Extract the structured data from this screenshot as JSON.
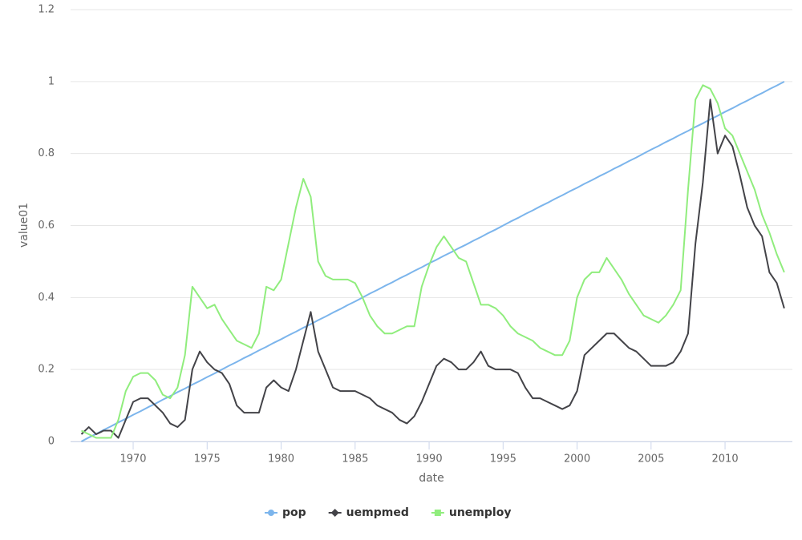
{
  "chart_data": {
    "type": "line",
    "x_label": "date",
    "y_label": "value01",
    "x": [
      1966.5,
      1967,
      1967.5,
      1968,
      1968.5,
      1969,
      1969.5,
      1970,
      1970.5,
      1971,
      1971.5,
      1972,
      1972.5,
      1973,
      1973.5,
      1974,
      1974.5,
      1975,
      1975.5,
      1976,
      1976.5,
      1977,
      1977.5,
      1978,
      1978.5,
      1979,
      1979.5,
      1980,
      1980.5,
      1981,
      1981.5,
      1982,
      1982.5,
      1983,
      1983.5,
      1984,
      1984.5,
      1985,
      1985.5,
      1986,
      1986.5,
      1987,
      1987.5,
      1988,
      1988.5,
      1989,
      1989.5,
      1990,
      1990.5,
      1991,
      1991.5,
      1992,
      1992.5,
      1993,
      1993.5,
      1994,
      1994.5,
      1995,
      1995.5,
      1996,
      1996.5,
      1997,
      1997.5,
      1998,
      1998.5,
      1999,
      1999.5,
      2000,
      2000.5,
      2001,
      2001.5,
      2002,
      2002.5,
      2003,
      2003.5,
      2004,
      2004.5,
      2005,
      2005.5,
      2006,
      2006.5,
      2007,
      2007.5,
      2008,
      2008.5,
      2009,
      2009.5,
      2010,
      2010.5,
      2011,
      2011.5,
      2012,
      2012.5,
      2013,
      2013.5,
      2014
    ],
    "series": [
      {
        "name": "pop",
        "color": "#7cb5ec",
        "marker": "circle",
        "values": [
          0,
          0.011,
          0.021,
          0.032,
          0.042,
          0.053,
          0.063,
          0.074,
          0.084,
          0.095,
          0.105,
          0.116,
          0.126,
          0.137,
          0.147,
          0.158,
          0.168,
          0.179,
          0.189,
          0.2,
          0.211,
          0.221,
          0.232,
          0.242,
          0.253,
          0.263,
          0.274,
          0.284,
          0.295,
          0.305,
          0.316,
          0.326,
          0.337,
          0.347,
          0.358,
          0.368,
          0.379,
          0.389,
          0.4,
          0.411,
          0.421,
          0.432,
          0.442,
          0.453,
          0.463,
          0.474,
          0.484,
          0.495,
          0.505,
          0.516,
          0.526,
          0.537,
          0.547,
          0.558,
          0.568,
          0.579,
          0.589,
          0.6,
          0.611,
          0.621,
          0.632,
          0.642,
          0.653,
          0.663,
          0.674,
          0.684,
          0.695,
          0.705,
          0.716,
          0.726,
          0.737,
          0.747,
          0.758,
          0.768,
          0.779,
          0.789,
          0.8,
          0.811,
          0.821,
          0.832,
          0.842,
          0.853,
          0.863,
          0.874,
          0.884,
          0.895,
          0.905,
          0.916,
          0.926,
          0.937,
          0.947,
          0.958,
          0.968,
          0.979,
          0.989,
          1
        ]
      },
      {
        "name": "uempmed",
        "color": "#434348",
        "marker": "diamond",
        "values": [
          0.02,
          0.04,
          0.02,
          0.03,
          0.03,
          0.01,
          0.06,
          0.11,
          0.12,
          0.12,
          0.1,
          0.08,
          0.05,
          0.04,
          0.06,
          0.2,
          0.25,
          0.22,
          0.2,
          0.19,
          0.16,
          0.1,
          0.08,
          0.08,
          0.08,
          0.15,
          0.17,
          0.15,
          0.14,
          0.2,
          0.28,
          0.36,
          0.25,
          0.2,
          0.15,
          0.14,
          0.14,
          0.14,
          0.13,
          0.12,
          0.1,
          0.09,
          0.08,
          0.06,
          0.05,
          0.07,
          0.11,
          0.16,
          0.21,
          0.23,
          0.22,
          0.2,
          0.2,
          0.22,
          0.25,
          0.21,
          0.2,
          0.2,
          0.2,
          0.19,
          0.15,
          0.12,
          0.12,
          0.11,
          0.1,
          0.09,
          0.1,
          0.14,
          0.24,
          0.26,
          0.28,
          0.3,
          0.3,
          0.28,
          0.26,
          0.25,
          0.23,
          0.21,
          0.21,
          0.21,
          0.22,
          0.25,
          0.3,
          0.55,
          0.72,
          0.95,
          0.8,
          0.85,
          0.82,
          0.74,
          0.65,
          0.6,
          0.57,
          0.47,
          0.44,
          0.37
        ]
      },
      {
        "name": "unemploy",
        "color": "#90ed7d",
        "marker": "square",
        "values": [
          0.03,
          0.02,
          0.01,
          0.01,
          0.01,
          0.06,
          0.14,
          0.18,
          0.19,
          0.19,
          0.17,
          0.13,
          0.12,
          0.15,
          0.24,
          0.43,
          0.4,
          0.37,
          0.38,
          0.34,
          0.31,
          0.28,
          0.27,
          0.26,
          0.3,
          0.43,
          0.42,
          0.45,
          0.55,
          0.65,
          0.73,
          0.68,
          0.5,
          0.46,
          0.45,
          0.45,
          0.45,
          0.44,
          0.4,
          0.35,
          0.32,
          0.3,
          0.3,
          0.31,
          0.32,
          0.32,
          0.43,
          0.49,
          0.54,
          0.57,
          0.54,
          0.51,
          0.5,
          0.44,
          0.38,
          0.38,
          0.37,
          0.35,
          0.32,
          0.3,
          0.29,
          0.28,
          0.26,
          0.25,
          0.24,
          0.24,
          0.28,
          0.4,
          0.45,
          0.47,
          0.47,
          0.51,
          0.48,
          0.45,
          0.41,
          0.38,
          0.35,
          0.34,
          0.33,
          0.35,
          0.38,
          0.42,
          0.7,
          0.95,
          0.99,
          0.98,
          0.94,
          0.87,
          0.85,
          0.8,
          0.75,
          0.7,
          0.63,
          0.58,
          0.52,
          0.47
        ]
      }
    ],
    "xlim": [
      1965.77,
      2014.55
    ],
    "xticks": [
      1970,
      1975,
      1980,
      1985,
      1990,
      1995,
      2000,
      2005,
      2010
    ],
    "ylim": [
      0,
      1.2
    ],
    "yticks": [
      0,
      0.2,
      0.4,
      0.6,
      0.8,
      1,
      1.2
    ],
    "grid": true,
    "legend": "bottom"
  }
}
